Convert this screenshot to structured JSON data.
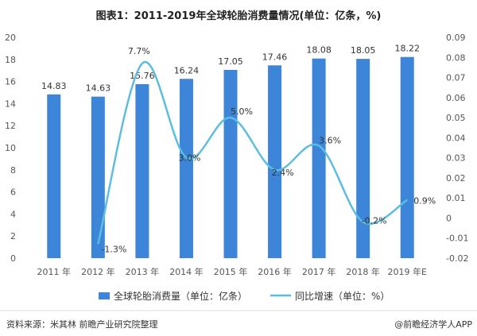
{
  "chart_data": {
    "type": "bar",
    "title": "图表1：2011-2019年全球轮胎消费量情况(单位：亿条，%)",
    "categories": [
      "2011 年",
      "2012 年",
      "2013 年",
      "2014 年",
      "2015 年",
      "2016 年",
      "2017 年",
      "2018 年",
      "2019 年E"
    ],
    "series": [
      {
        "name": "全球轮胎消费量（单位：亿条）",
        "type": "bar",
        "axis": "left",
        "values": [
          14.83,
          14.63,
          15.76,
          16.24,
          17.05,
          17.46,
          18.08,
          18.05,
          18.22
        ],
        "labels": [
          "14.83",
          "14.63",
          "15.76",
          "16.24",
          "17.05",
          "17.46",
          "18.08",
          "18.05",
          "18.22"
        ],
        "color": "#3d85d8"
      },
      {
        "name": "同比增速（单位：%）",
        "type": "line",
        "axis": "right",
        "values": [
          null,
          -0.013,
          0.077,
          0.03,
          0.05,
          0.024,
          0.036,
          -0.002,
          0.009
        ],
        "labels": [
          "",
          "-1.3%",
          "7.7%",
          "3.0%",
          "5.0%",
          "2.4%",
          "3.6%",
          "-0.2%",
          "0.9%"
        ],
        "color": "#5bbde0"
      }
    ],
    "y_left": {
      "min": 0,
      "max": 20,
      "step": 2,
      "ticks": [
        "0",
        "2",
        "4",
        "6",
        "8",
        "10",
        "12",
        "14",
        "16",
        "18",
        "20"
      ]
    },
    "y_right": {
      "min": -0.02,
      "max": 0.09,
      "step": 0.01,
      "ticks": [
        "-0.02",
        "-0.01",
        "0",
        "0.01",
        "0.02",
        "0.03",
        "0.04",
        "0.05",
        "0.06",
        "0.07",
        "0.08",
        "0.09"
      ]
    },
    "legend_position": "bottom",
    "grid": false
  },
  "footer": {
    "source": "资料来源：米其林 前瞻产业研究院整理",
    "brand": "@前瞻经济学人APP"
  }
}
